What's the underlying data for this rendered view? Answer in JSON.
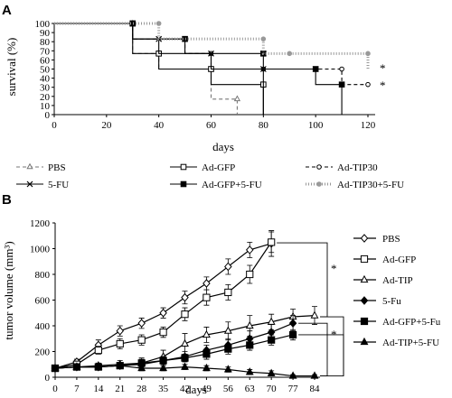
{
  "chart_data": [
    {
      "type": "line",
      "panel": "A",
      "xlabel": "days",
      "ylabel": "survival (%)",
      "xlim": [
        0,
        120
      ],
      "ylim": [
        0,
        100
      ],
      "xticks": [
        0,
        20,
        40,
        60,
        80,
        100,
        120
      ],
      "yticks": [
        0,
        10,
        20,
        30,
        40,
        50,
        60,
        70,
        80,
        90,
        100
      ],
      "step": true,
      "legend": "bottom",
      "series": [
        {
          "name": "PBS",
          "color": "#777777",
          "marker": "open-triangle",
          "dash": "4,3",
          "x": [
            0,
            30,
            40,
            60,
            70
          ],
          "y": [
            100,
            67,
            50,
            17,
            0
          ]
        },
        {
          "name": "Ad-GFP",
          "color": "#000000",
          "marker": "open-square",
          "dash": "",
          "x": [
            0,
            30,
            40,
            60,
            80
          ],
          "y": [
            100,
            67,
            50,
            33,
            0
          ]
        },
        {
          "name": "Ad-TIP30",
          "color": "#000000",
          "marker": "open-circle",
          "dash": "4,3",
          "x": [
            0,
            30,
            50,
            60,
            80,
            110,
            120
          ],
          "y": [
            100,
            83,
            67,
            50,
            50,
            33,
            33
          ]
        },
        {
          "name": "5-FU",
          "color": "#000000",
          "marker": "x",
          "dash": "",
          "x": [
            0,
            30,
            40,
            60,
            80
          ],
          "y": [
            100,
            83,
            67,
            50,
            0
          ]
        },
        {
          "name": "Ad-GFP+5-FU",
          "color": "#000000",
          "marker": "filled-square",
          "dash": "",
          "x": [
            0,
            30,
            50,
            80,
            100,
            110
          ],
          "y": [
            100,
            83,
            67,
            50,
            33,
            0
          ]
        },
        {
          "name": "Ad-TIP30+5-FU",
          "color": "#999999",
          "marker": "filled-circle",
          "dash": "1,2",
          "x": [
            0,
            40,
            80,
            90,
            120
          ],
          "y": [
            100,
            83,
            67,
            67,
            50
          ]
        }
      ],
      "annotations": [
        "*",
        "*"
      ]
    },
    {
      "type": "line",
      "panel": "B",
      "xlabel": "days",
      "ylabel": "tumor volume (mm³)",
      "xlim": [
        0,
        84
      ],
      "ylim": [
        0,
        1200
      ],
      "xticks": [
        0,
        7,
        14,
        21,
        28,
        35,
        42,
        49,
        56,
        63,
        70,
        77,
        84
      ],
      "yticks": [
        0,
        200,
        400,
        600,
        800,
        1000,
        1200
      ],
      "legend": "right",
      "series": [
        {
          "name": "PBS",
          "marker": "open-diamond",
          "x": [
            0,
            7,
            14,
            21,
            28,
            35,
            42,
            49,
            56,
            63,
            70
          ],
          "y": [
            70,
            120,
            250,
            360,
            420,
            500,
            620,
            730,
            860,
            990,
            1040
          ],
          "err": [
            20,
            20,
            40,
            40,
            40,
            40,
            50,
            50,
            60,
            60,
            100
          ]
        },
        {
          "name": "Ad-GFP",
          "marker": "open-square",
          "x": [
            0,
            7,
            14,
            21,
            28,
            35,
            42,
            49,
            56,
            63,
            70
          ],
          "y": [
            70,
            100,
            210,
            260,
            290,
            350,
            490,
            620,
            660,
            800,
            1050
          ],
          "err": [
            20,
            20,
            30,
            40,
            40,
            40,
            50,
            60,
            60,
            70,
            80
          ]
        },
        {
          "name": "Ad-TIP",
          "marker": "open-triangle",
          "x": [
            0,
            7,
            14,
            21,
            28,
            35,
            42,
            49,
            56,
            63,
            70,
            77,
            84
          ],
          "y": [
            70,
            80,
            90,
            100,
            110,
            160,
            260,
            330,
            360,
            400,
            430,
            470,
            480
          ],
          "err": [
            20,
            20,
            20,
            30,
            40,
            50,
            80,
            60,
            70,
            80,
            60,
            60,
            70
          ]
        },
        {
          "name": "5-Fu",
          "marker": "filled-diamond",
          "x": [
            0,
            7,
            14,
            21,
            28,
            35,
            42,
            49,
            56,
            63,
            70,
            77
          ],
          "y": [
            70,
            80,
            80,
            90,
            100,
            130,
            160,
            210,
            250,
            300,
            350,
            420
          ],
          "err": [
            20,
            20,
            20,
            20,
            30,
            30,
            40,
            40,
            50,
            60,
            60,
            60
          ]
        },
        {
          "name": "Ad-GFP+5-Fu",
          "marker": "filled-square",
          "x": [
            0,
            7,
            14,
            21,
            28,
            35,
            42,
            49,
            56,
            63,
            70,
            77
          ],
          "y": [
            70,
            80,
            80,
            90,
            110,
            130,
            150,
            180,
            220,
            250,
            290,
            330
          ],
          "err": [
            20,
            20,
            20,
            20,
            30,
            30,
            30,
            40,
            40,
            40,
            40,
            40
          ]
        },
        {
          "name": "Ad-TIP+5-FU",
          "marker": "filled-triangle",
          "x": [
            0,
            7,
            14,
            21,
            28,
            35,
            42,
            49,
            56,
            63,
            70,
            77,
            84
          ],
          "y": [
            70,
            80,
            80,
            90,
            70,
            70,
            80,
            70,
            60,
            40,
            30,
            10,
            10
          ],
          "err": [
            20,
            20,
            20,
            20,
            20,
            20,
            20,
            20,
            20,
            20,
            20,
            10,
            10
          ]
        }
      ],
      "annotations": [
        "*",
        "*"
      ]
    }
  ]
}
